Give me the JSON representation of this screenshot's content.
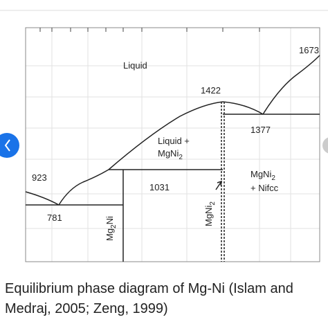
{
  "diagram": {
    "temps": {
      "t1673": "1673",
      "t1422": "1422",
      "t1377": "1377",
      "t923": "923",
      "t1031": "1031",
      "t781": "781"
    },
    "phases": {
      "liquid": "Liquid",
      "liquid_mgni2": {
        "line1": "Liquid +",
        "base": "MgNi",
        "sub": "2"
      },
      "mgni2_nifcc": {
        "base": "MgNi",
        "sub": "2",
        "line2": "+ Nifcc"
      },
      "mg2ni": {
        "pre": "Mg",
        "sub": "2",
        "post": "Ni"
      },
      "mgni2": {
        "base": "MgNi",
        "sub": "2"
      }
    }
  },
  "caption": "Equilibrium phase diagram of Mg-Ni (Islam and Medraj, 2005; Zeng, 1999)"
}
